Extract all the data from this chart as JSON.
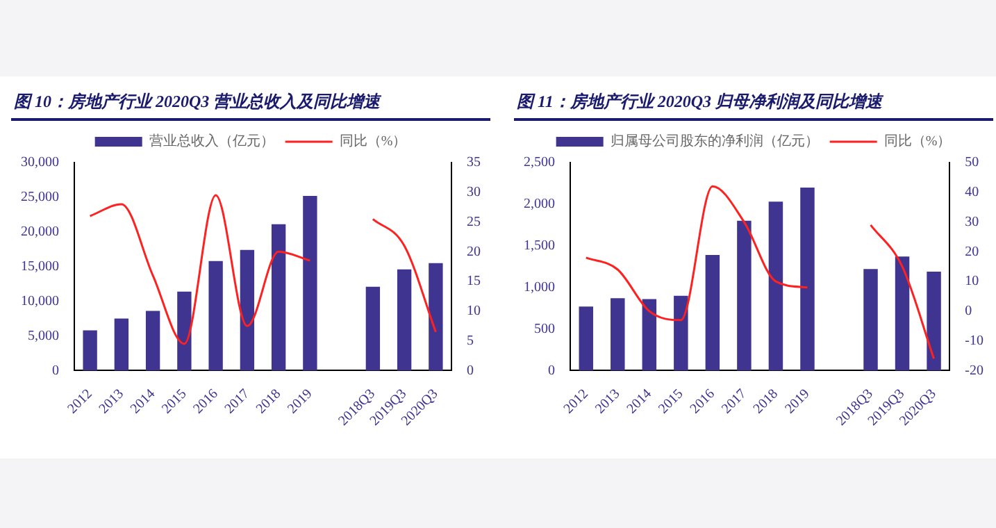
{
  "chart_data": [
    {
      "type": "bar",
      "title": "图 10：房地产行业 2020Q3 营业总收入及同比增速",
      "categories": [
        "2012",
        "2013",
        "2014",
        "2015",
        "2016",
        "2017",
        "2018",
        "2019",
        null,
        "2018Q3",
        "2019Q3",
        "2020Q3"
      ],
      "series": [
        {
          "name": "营业总收入（亿元）",
          "color": "#3f3590",
          "values": [
            5800,
            7500,
            8600,
            11400,
            15800,
            17400,
            21100,
            25200,
            null,
            12100,
            14600,
            15500
          ]
        },
        {
          "name": "同比（%）",
          "type": "line",
          "axis": "y2",
          "color": "#ff2020",
          "values": [
            26,
            28,
            16,
            4.5,
            29.5,
            7.5,
            20,
            18.5,
            null,
            25.5,
            21,
            6.5
          ]
        }
      ],
      "ylim": [
        0,
        30000
      ],
      "yticks": [
        {
          "value": 0,
          "label": "0"
        },
        {
          "value": 5000,
          "label": "5,000"
        },
        {
          "value": 10000,
          "label": "10,000"
        },
        {
          "value": 15000,
          "label": "15,000"
        },
        {
          "value": 20000,
          "label": "20,000"
        },
        {
          "value": 25000,
          "label": "25,000"
        },
        {
          "value": 30000,
          "label": "30,000"
        }
      ],
      "y2lim": [
        0,
        35
      ],
      "y2ticks": [
        0,
        5,
        10,
        15,
        20,
        25,
        30,
        35
      ],
      "grid": false,
      "legend": "top",
      "marker": "none"
    },
    {
      "type": "bar",
      "title": "图 11：房地产行业 2020Q3 归母净利润及同比增速",
      "categories": [
        "2012",
        "2013",
        "2014",
        "2015",
        "2016",
        "2017",
        "2018",
        "2019",
        null,
        "2018Q3",
        "2019Q3",
        "2020Q3"
      ],
      "series": [
        {
          "name": "归属母公司股东的净利润（亿元）",
          "color": "#3f3590",
          "values": [
            770,
            870,
            860,
            900,
            1390,
            1800,
            2030,
            2200,
            null,
            1220,
            1370,
            1190
          ]
        },
        {
          "name": "同比（%）",
          "type": "line",
          "axis": "y2",
          "color": "#ff2020",
          "values": [
            18,
            14,
            0,
            -3,
            42,
            30,
            10,
            8,
            null,
            29,
            15,
            -16
          ]
        }
      ],
      "ylim": [
        0,
        2500
      ],
      "yticks": [
        {
          "value": 0,
          "label": "0"
        },
        {
          "value": 500,
          "label": "500"
        },
        {
          "value": 1000,
          "label": "1,000"
        },
        {
          "value": 1500,
          "label": "1,500"
        },
        {
          "value": 2000,
          "label": "2,000"
        },
        {
          "value": 2500,
          "label": "2,500"
        }
      ],
      "y2lim": [
        -20,
        50
      ],
      "y2ticks": [
        -20,
        -10,
        0,
        10,
        20,
        30,
        40,
        50
      ],
      "grid": false,
      "legend": "top",
      "marker": "none"
    }
  ]
}
